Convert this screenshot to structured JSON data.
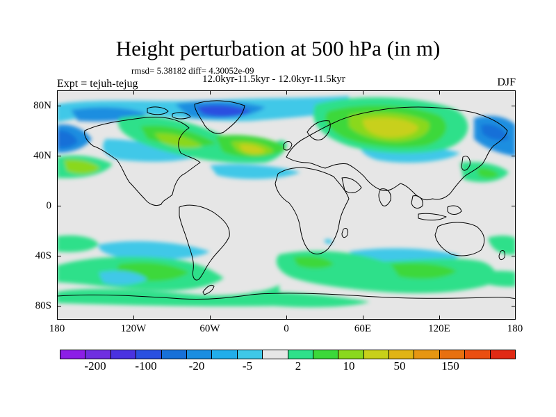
{
  "title": "Height perturbation at 500 hPa (in m)",
  "stats_text": "rmsd= 5.38182 diff= 4.30052e-09",
  "period_text": "12.0kyr-11.5kyr - 12.0kyr-11.5kyr",
  "expt_label": "Expt = tejuh-tejug",
  "season_label": "DJF",
  "map": {
    "lat_labels": [
      "80N",
      "40N",
      "0",
      "40S",
      "80S"
    ],
    "lon_labels": [
      "180",
      "120W",
      "60W",
      "0",
      "60E",
      "120E",
      "180"
    ],
    "background_color": "#e6e6e6"
  },
  "colorbar": {
    "colors": [
      "#8c1ee6",
      "#6f2fe0",
      "#4a32e0",
      "#2a50e0",
      "#1770d8",
      "#1a8ee0",
      "#22aeea",
      "#3fc8e8",
      "#e6e6e6",
      "#2ee08a",
      "#3cd83a",
      "#8ad81e",
      "#c8d01a",
      "#e0b414",
      "#e69612",
      "#e8700f",
      "#ea4e10",
      "#e02a14"
    ],
    "labels": [
      "-200",
      "-100",
      "-20",
      "-5",
      "2",
      "10",
      "50",
      "150"
    ]
  }
}
